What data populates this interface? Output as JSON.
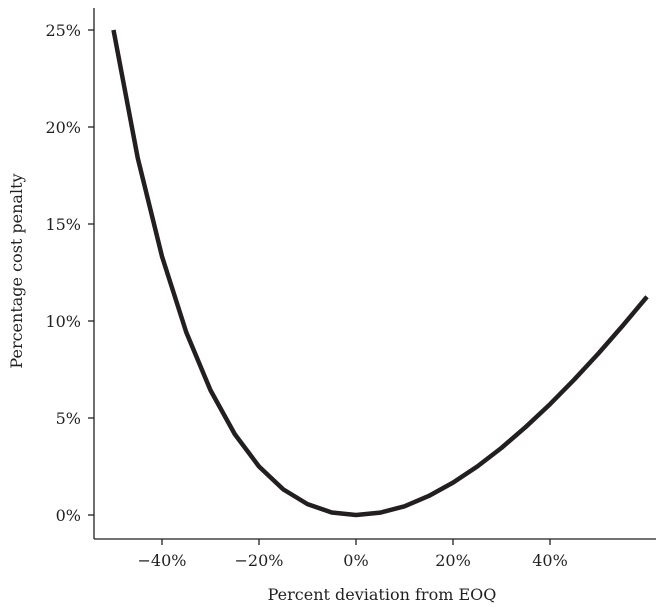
{
  "chart_data": {
    "type": "line",
    "title": "",
    "xlabel": "Percent deviation from EOQ",
    "ylabel": "Percentage cost penalty",
    "xlim": [
      -0.55,
      0.62
    ],
    "ylim": [
      0,
      0.25
    ],
    "x_ticks": [
      {
        "value": -0.4,
        "label": "−40%"
      },
      {
        "value": -0.2,
        "label": "−20%"
      },
      {
        "value": 0.0,
        "label": "0%"
      },
      {
        "value": 0.2,
        "label": "20%"
      },
      {
        "value": 0.4,
        "label": "40%"
      }
    ],
    "y_ticks": [
      {
        "value": 0.0,
        "label": "0%"
      },
      {
        "value": 0.05,
        "label": "5%"
      },
      {
        "value": 0.1,
        "label": "10%"
      },
      {
        "value": 0.15,
        "label": "15%"
      },
      {
        "value": 0.2,
        "label": "20%"
      },
      {
        "value": 0.25,
        "label": "25%"
      }
    ],
    "grid": false,
    "legend": "none",
    "series": [
      {
        "x": [
          -0.5,
          -0.45,
          -0.4,
          -0.35,
          -0.3,
          -0.25,
          -0.2,
          -0.15,
          -0.1,
          -0.05,
          0.0,
          0.05,
          0.1,
          0.15,
          0.2,
          0.25,
          0.3,
          0.35,
          0.4,
          0.45,
          0.5,
          0.55,
          0.6
        ],
        "y": [
          0.25,
          0.184,
          0.1333,
          0.0942,
          0.0643,
          0.0417,
          0.025,
          0.0132,
          0.0056,
          0.0013,
          0.0,
          0.0012,
          0.0045,
          0.0098,
          0.0167,
          0.025,
          0.0346,
          0.0454,
          0.0571,
          0.0698,
          0.0833,
          0.0976,
          0.1125
        ],
        "color": "#231f20"
      }
    ]
  }
}
